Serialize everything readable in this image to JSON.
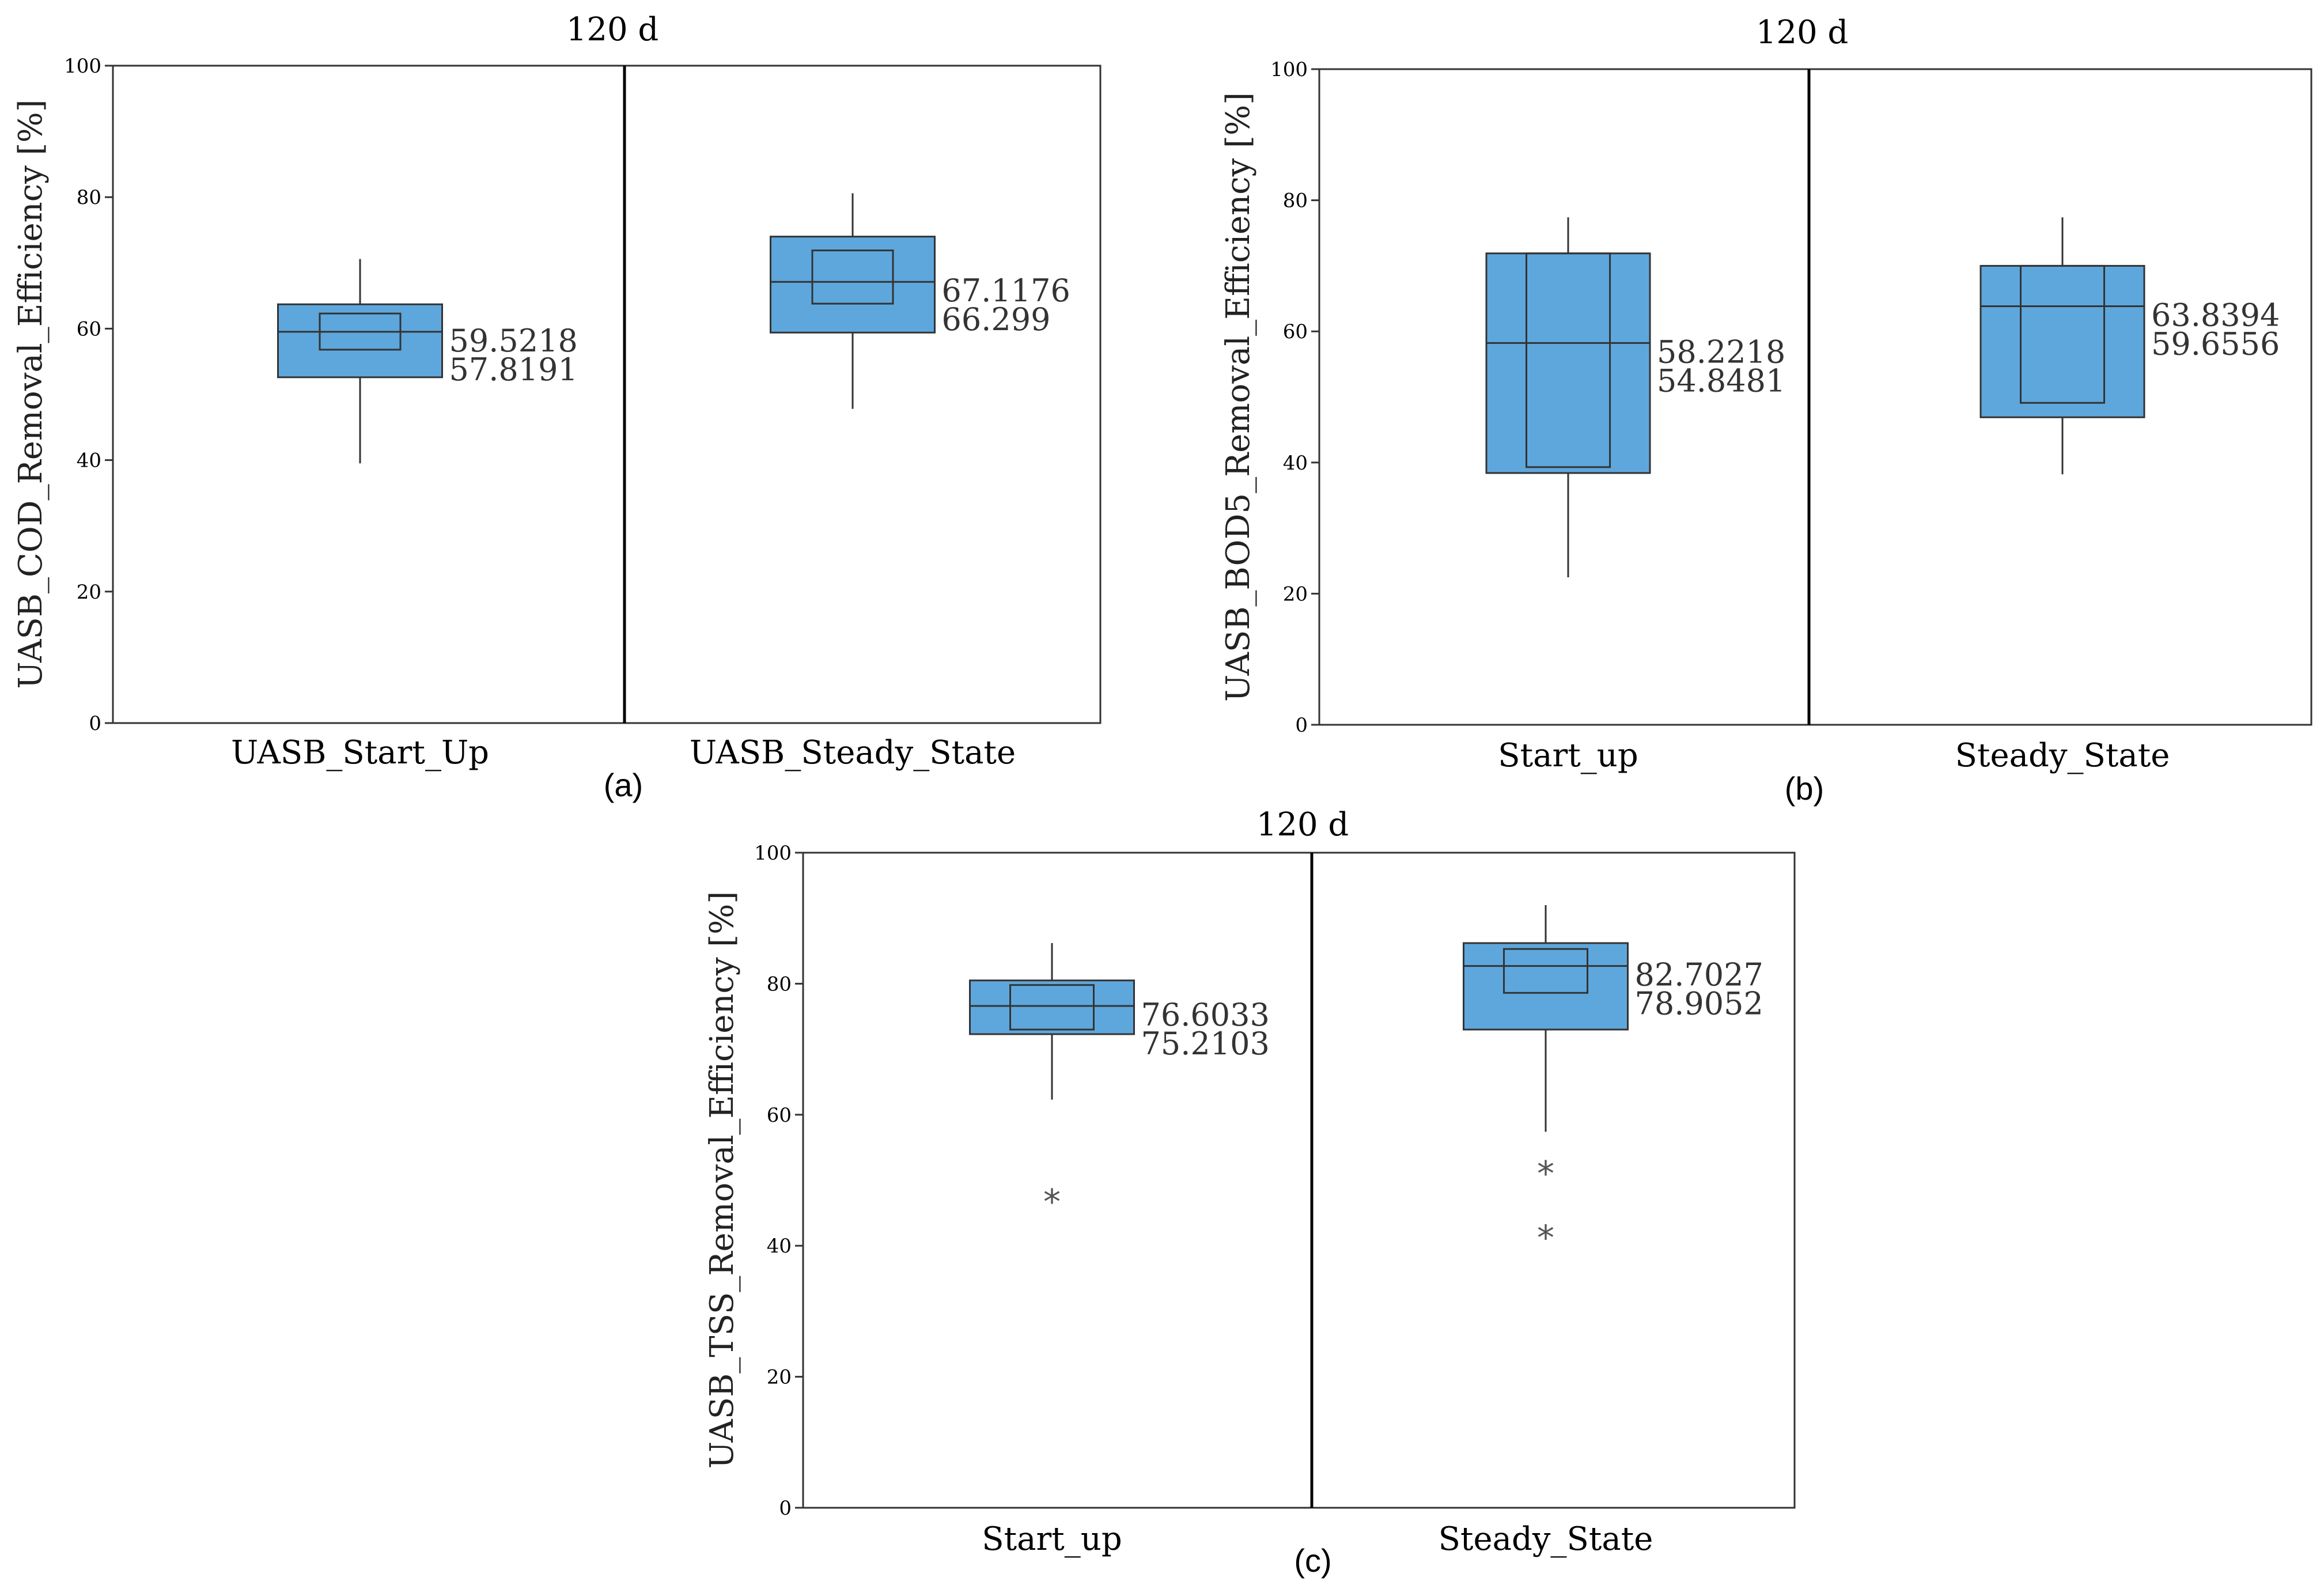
{
  "colors": {
    "box_fill": "#5ea7dc",
    "line": "#333333"
  },
  "chart_data": [
    {
      "type": "boxplot",
      "panel_label": "(a)",
      "title": "120 d",
      "ylabel": "UASB_COD_Removal_Efficiency [%]",
      "xlabel": "",
      "ylim": [
        0,
        100
      ],
      "yticks": [
        0,
        20,
        40,
        60,
        80,
        100
      ],
      "categories": [
        "UASB_Start_Up",
        "UASB_Steady_State"
      ],
      "boxes": [
        {
          "q1": 52.6,
          "q3": 63.7,
          "median": 59.5218,
          "ci_low": 56.8,
          "ci_high": 62.3,
          "whisker_low": 39.5,
          "whisker_high": 70.6,
          "labels": [
            "59.5218",
            "57.8191"
          ],
          "outliers": []
        },
        {
          "q1": 59.4,
          "q3": 74.0,
          "median": 67.1176,
          "ci_low": 63.8,
          "ci_high": 71.9,
          "whisker_low": 47.8,
          "whisker_high": 80.6,
          "labels": [
            "67.1176",
            "66.299"
          ],
          "outliers": []
        }
      ]
    },
    {
      "type": "boxplot",
      "panel_label": "(b)",
      "title": "120 d",
      "ylabel": "UASB_BOD5_Removal_Efficiency [%]",
      "xlabel": "",
      "ylim": [
        0,
        100
      ],
      "yticks": [
        0,
        20,
        40,
        60,
        80,
        100
      ],
      "categories": [
        "Start_up",
        "Steady_State"
      ],
      "boxes": [
        {
          "q1": 38.4,
          "q3": 71.9,
          "median": 58.2218,
          "ci_low": 39.3,
          "ci_high": 71.9,
          "whisker_low": 22.5,
          "whisker_high": 77.4,
          "labels": [
            "58.2218",
            "54.8481"
          ],
          "outliers": []
        },
        {
          "q1": 46.9,
          "q3": 70.0,
          "median": 63.8394,
          "ci_low": 49.1,
          "ci_high": 70.0,
          "whisker_low": 38.2,
          "whisker_high": 77.4,
          "labels": [
            "63.8394",
            "59.6556"
          ],
          "outliers": []
        }
      ]
    },
    {
      "type": "boxplot",
      "panel_label": "(c)",
      "title": "120 d",
      "ylabel": "UASB_TSS_Removal_Efficiency [%]",
      "xlabel": "",
      "ylim": [
        0,
        100
      ],
      "yticks": [
        0,
        20,
        40,
        60,
        80,
        100
      ],
      "categories": [
        "Start_up",
        "Steady_State"
      ],
      "boxes": [
        {
          "q1": 72.3,
          "q3": 80.5,
          "median": 76.6033,
          "ci_low": 73.0,
          "ci_high": 79.8,
          "whisker_low": 62.3,
          "whisker_high": 86.2,
          "labels": [
            "76.6033",
            "75.2103"
          ],
          "outliers": [
            47.0
          ]
        },
        {
          "q1": 73.0,
          "q3": 86.2,
          "median": 82.7027,
          "ci_low": 78.6,
          "ci_high": 85.3,
          "whisker_low": 57.4,
          "whisker_high": 92.0,
          "labels": [
            "82.7027",
            "78.9052"
          ],
          "outliers": [
            51.3,
            41.5
          ]
        }
      ]
    }
  ]
}
